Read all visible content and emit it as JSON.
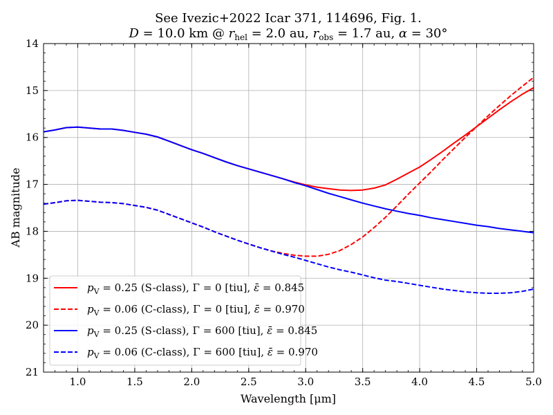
{
  "chart_data": {
    "type": "line",
    "title_line1": "See Ivezic+2022 Icar 371, 114696, Fig. 1.",
    "title_line2": "D = 10.0 km @ r_hel = 2.0 au, r_obs = 1.7 au, α = 30°",
    "title_parts": {
      "d_sym": "D",
      "d_val": " = 10.0 km @ ",
      "r_sym": "r",
      "hel_sub": "hel",
      "rhel_val": " = 2.0 au, ",
      "obs_sub": "obs",
      "robs_val": " = 1.7 au, ",
      "alpha_sym": "α",
      "alpha_val": " = 30°"
    },
    "xlabel": "Wavelength [μm]",
    "ylabel": "AB magnitude",
    "xlim": [
      0.7,
      5.0
    ],
    "ylim": [
      14,
      21
    ],
    "y_inverted": true,
    "grid": true,
    "x_ticks": [
      1.0,
      1.5,
      2.0,
      2.5,
      3.0,
      3.5,
      4.0,
      4.5,
      5.0
    ],
    "x_tick_labels": [
      "1.0",
      "1.5",
      "2.0",
      "2.5",
      "3.0",
      "3.5",
      "4.0",
      "4.5",
      "5.0"
    ],
    "y_ticks": [
      14,
      15,
      16,
      17,
      18,
      19,
      20,
      21
    ],
    "y_tick_labels": [
      "14",
      "15",
      "16",
      "17",
      "18",
      "19",
      "20",
      "21"
    ],
    "legend_position": "lower-left",
    "series": [
      {
        "name": "p_V = 0.25 (S-class), Γ = 0 [tiu], ε̄ = 0.845",
        "legend": {
          "p": "p",
          "sub": "V",
          "pval": " = 0.25 (S-class), ",
          "gamma": "Γ = 0 [tiu], ",
          "eps": "ε̄",
          "epsval": " = 0.845"
        },
        "color": "#ff0000",
        "dash": "solid",
        "x": [
          0.7,
          0.8,
          0.9,
          1.0,
          1.1,
          1.2,
          1.3,
          1.4,
          1.5,
          1.6,
          1.7,
          1.8,
          1.9,
          2.0,
          2.1,
          2.2,
          2.3,
          2.4,
          2.5,
          2.6,
          2.7,
          2.8,
          2.9,
          3.0,
          3.1,
          3.2,
          3.3,
          3.4,
          3.5,
          3.6,
          3.7,
          3.8,
          3.9,
          4.0,
          4.1,
          4.2,
          4.3,
          4.4,
          4.5,
          4.6,
          4.7,
          4.8,
          4.9,
          5.0
        ],
        "y": [
          15.88,
          15.84,
          15.79,
          15.78,
          15.8,
          15.82,
          15.82,
          15.85,
          15.89,
          15.93,
          15.99,
          16.08,
          16.17,
          16.26,
          16.34,
          16.43,
          16.52,
          16.6,
          16.67,
          16.74,
          16.81,
          16.88,
          16.95,
          17.01,
          17.06,
          17.09,
          17.12,
          17.13,
          17.12,
          17.08,
          17.01,
          16.89,
          16.76,
          16.63,
          16.47,
          16.3,
          16.12,
          15.95,
          15.77,
          15.59,
          15.41,
          15.24,
          15.08,
          14.94
        ]
      },
      {
        "name": "p_V = 0.06 (C-class), Γ = 0 [tiu], ε̄ = 0.970",
        "legend": {
          "p": "p",
          "sub": "V",
          "pval": " = 0.06 (C-class), ",
          "gamma": "Γ = 0 [tiu], ",
          "eps": "ε̄",
          "epsval": " = 0.970"
        },
        "color": "#ff0000",
        "dash": "dashed",
        "x": [
          0.7,
          0.8,
          0.9,
          1.0,
          1.1,
          1.2,
          1.3,
          1.4,
          1.5,
          1.6,
          1.7,
          1.8,
          1.9,
          2.0,
          2.1,
          2.2,
          2.3,
          2.4,
          2.5,
          2.6,
          2.7,
          2.8,
          2.9,
          3.0,
          3.1,
          3.2,
          3.3,
          3.4,
          3.5,
          3.6,
          3.7,
          3.8,
          3.9,
          4.0,
          4.1,
          4.2,
          4.3,
          4.4,
          4.5,
          4.6,
          4.7,
          4.8,
          4.9,
          5.0
        ],
        "y": [
          17.42,
          17.39,
          17.35,
          17.34,
          17.36,
          17.38,
          17.39,
          17.41,
          17.45,
          17.49,
          17.55,
          17.64,
          17.73,
          17.82,
          17.91,
          18.01,
          18.1,
          18.19,
          18.27,
          18.35,
          18.42,
          18.47,
          18.51,
          18.53,
          18.53,
          18.49,
          18.41,
          18.28,
          18.12,
          17.92,
          17.7,
          17.46,
          17.21,
          16.97,
          16.73,
          16.48,
          16.24,
          16.0,
          15.77,
          15.54,
          15.32,
          15.11,
          14.91,
          14.72
        ]
      },
      {
        "name": "p_V = 0.25 (S-class), Γ = 600 [tiu], ε̄ = 0.845",
        "legend": {
          "p": "p",
          "sub": "V",
          "pval": " = 0.25 (S-class), ",
          "gamma": "Γ = 600 [tiu], ",
          "eps": "ε̄",
          "epsval": " = 0.845"
        },
        "color": "#0000ff",
        "dash": "solid",
        "x": [
          0.7,
          0.8,
          0.9,
          1.0,
          1.1,
          1.2,
          1.3,
          1.4,
          1.5,
          1.6,
          1.7,
          1.8,
          1.9,
          2.0,
          2.1,
          2.2,
          2.3,
          2.4,
          2.5,
          2.6,
          2.7,
          2.8,
          2.9,
          3.0,
          3.1,
          3.2,
          3.3,
          3.4,
          3.5,
          3.6,
          3.7,
          3.8,
          3.9,
          4.0,
          4.1,
          4.2,
          4.3,
          4.4,
          4.5,
          4.6,
          4.7,
          4.8,
          4.9,
          5.0
        ],
        "y": [
          15.88,
          15.84,
          15.79,
          15.78,
          15.8,
          15.82,
          15.82,
          15.85,
          15.89,
          15.93,
          15.99,
          16.08,
          16.17,
          16.26,
          16.34,
          16.43,
          16.52,
          16.6,
          16.67,
          16.74,
          16.81,
          16.88,
          16.96,
          17.03,
          17.11,
          17.19,
          17.26,
          17.33,
          17.4,
          17.46,
          17.52,
          17.57,
          17.62,
          17.66,
          17.71,
          17.75,
          17.79,
          17.83,
          17.87,
          17.9,
          17.94,
          17.97,
          18.0,
          18.03
        ]
      },
      {
        "name": "p_V = 0.06 (C-class), Γ = 600 [tiu], ε̄ = 0.970",
        "legend": {
          "p": "p",
          "sub": "V",
          "pval": " = 0.06 (C-class), ",
          "gamma": "Γ = 600 [tiu], ",
          "eps": "ε̄",
          "epsval": " = 0.970"
        },
        "color": "#0000ff",
        "dash": "dashed",
        "x": [
          0.7,
          0.8,
          0.9,
          1.0,
          1.1,
          1.2,
          1.3,
          1.4,
          1.5,
          1.6,
          1.7,
          1.8,
          1.9,
          2.0,
          2.1,
          2.2,
          2.3,
          2.4,
          2.5,
          2.6,
          2.7,
          2.8,
          2.9,
          3.0,
          3.1,
          3.2,
          3.3,
          3.4,
          3.5,
          3.6,
          3.7,
          3.8,
          3.9,
          4.0,
          4.1,
          4.2,
          4.3,
          4.4,
          4.5,
          4.6,
          4.7,
          4.8,
          4.9,
          5.0
        ],
        "y": [
          17.42,
          17.39,
          17.35,
          17.34,
          17.36,
          17.38,
          17.39,
          17.41,
          17.45,
          17.49,
          17.55,
          17.64,
          17.73,
          17.82,
          17.91,
          18.01,
          18.1,
          18.19,
          18.27,
          18.35,
          18.42,
          18.49,
          18.55,
          18.62,
          18.69,
          18.76,
          18.82,
          18.87,
          18.93,
          18.99,
          19.04,
          19.07,
          19.11,
          19.15,
          19.19,
          19.23,
          19.26,
          19.29,
          19.31,
          19.32,
          19.32,
          19.31,
          19.28,
          19.23
        ]
      }
    ]
  }
}
